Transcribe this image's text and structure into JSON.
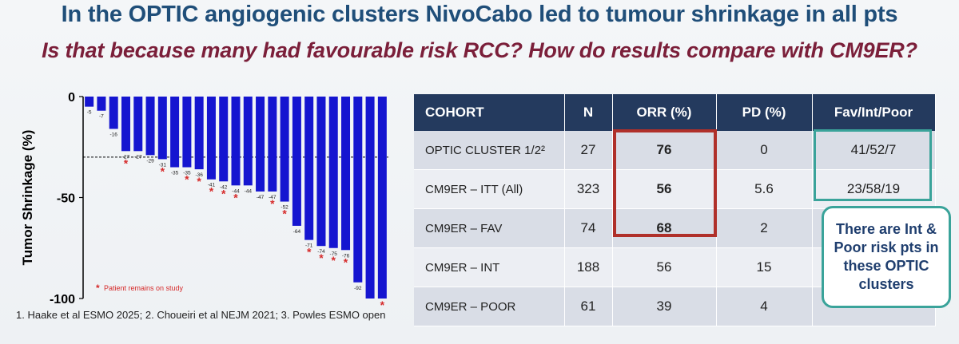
{
  "header": {
    "title": "In the OPTIC angiogenic clusters NivoCabo led to tumour shrinkage in all pts",
    "subtitle": "Is that because many had favourable risk RCC? How do results compare with CM9ER?"
  },
  "chart_data": {
    "type": "bar",
    "ylabel": "Tumor Shrinkage (%)",
    "ylim": [
      -100,
      0
    ],
    "yticks": [
      "0",
      "-50",
      "-100"
    ],
    "reference_line": -30,
    "values": [
      -5,
      -7,
      -16,
      -27,
      -27,
      -29,
      -31,
      -35,
      -35,
      -36,
      -41,
      -42,
      -44,
      -44,
      -47,
      -47,
      -52,
      -64,
      -71,
      -74,
      -75,
      -76,
      -92,
      -100,
      -100
    ],
    "data_labels": [
      "-5",
      "-7",
      "-16",
      "-27",
      "-27",
      "-29",
      "-31",
      "-35",
      "-35",
      "-36",
      "-41",
      "-42",
      "-44",
      "-44",
      "-47",
      "-47",
      "-52",
      "-64",
      "-71",
      "-74",
      "-75",
      "-76",
      "-92",
      "",
      ""
    ],
    "on_study": [
      false,
      false,
      false,
      true,
      false,
      false,
      true,
      false,
      true,
      true,
      true,
      true,
      true,
      false,
      false,
      true,
      true,
      false,
      true,
      true,
      true,
      true,
      false,
      false,
      true
    ],
    "legend_text": "Patient remains on study",
    "marker_symbol": "*",
    "bar_color": "#1515d0",
    "marker_color": "#d62a2a"
  },
  "footnote": "1. Haake et al ESMO 2025; 2. Choueiri et al NEJM 2021; 3. Powles ESMO open",
  "table": {
    "headers": [
      "COHORT",
      "N",
      "ORR (%)",
      "PD (%)",
      "Fav/Int/Poor"
    ],
    "rows": [
      {
        "cohort": "OPTIC CLUSTER 1/2²",
        "n": "27",
        "orr": "76",
        "pd": "0",
        "risk": "41/52/7"
      },
      {
        "cohort": "CM9ER – ITT (All)",
        "n": "323",
        "orr": "56",
        "pd": "5.6",
        "risk": "23/58/19"
      },
      {
        "cohort": "CM9ER – FAV",
        "n": "74",
        "orr": "68",
        "pd": "2",
        "risk": ""
      },
      {
        "cohort": "CM9ER – INT",
        "n": "188",
        "orr": "56",
        "pd": "15",
        "risk": ""
      },
      {
        "cohort": "CM9ER – POOR",
        "n": "61",
        "orr": "39",
        "pd": "4",
        "risk": ""
      }
    ]
  },
  "callout": "There are Int & Poor risk pts in these OPTIC clusters",
  "colors": {
    "title": "#1f4e79",
    "subtitle": "#7b1f3a",
    "header_bg": "#243a5e",
    "orr_box": "#b0302a",
    "teal": "#3aa39a"
  }
}
